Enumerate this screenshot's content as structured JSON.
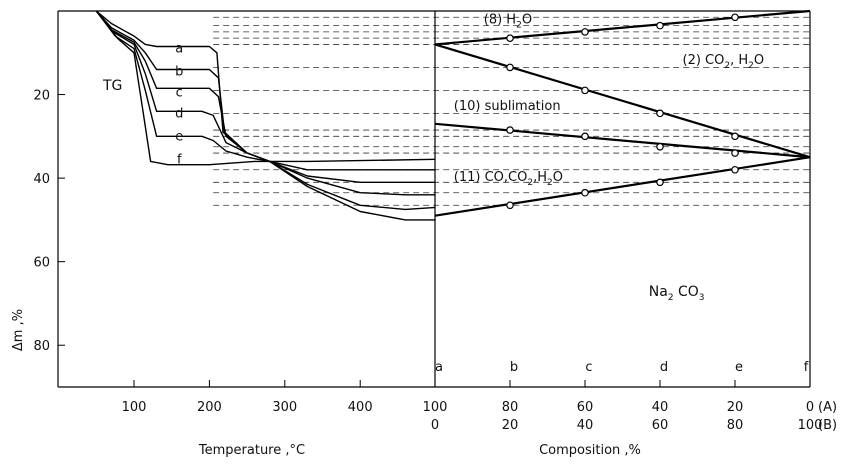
{
  "chart_data": [
    {
      "panel": "left",
      "type": "line",
      "label": "TG",
      "xlabel": "Temperature ,°C",
      "ylabel": "Δm ,%",
      "xlim": [
        0,
        500
      ],
      "ylim": [
        0,
        90
      ],
      "y_inverted": true,
      "x_ticks": [
        100,
        200,
        300,
        400
      ],
      "y_ticks": [
        20,
        40,
        60,
        80
      ],
      "series": [
        {
          "name": "a",
          "points": [
            [
              50,
              0
            ],
            [
              70,
              3
            ],
            [
              100,
              6
            ],
            [
              115,
              8
            ],
            [
              130,
              8.5
            ],
            [
              200,
              8.5
            ],
            [
              210,
              10
            ],
            [
              218,
              29
            ],
            [
              250,
              34
            ],
            [
              280,
              36
            ],
            [
              330,
              42
            ],
            [
              400,
              48
            ],
            [
              460,
              50
            ],
            [
              500,
              50
            ]
          ]
        },
        {
          "name": "b",
          "points": [
            [
              50,
              0
            ],
            [
              70,
              4
            ],
            [
              100,
              7
            ],
            [
              115,
              10
            ],
            [
              130,
              14
            ],
            [
              200,
              14
            ],
            [
              212,
              16
            ],
            [
              220,
              29
            ],
            [
              250,
              34
            ],
            [
              280,
              36
            ],
            [
              330,
              41.5
            ],
            [
              400,
              46.5
            ],
            [
              460,
              47.5
            ],
            [
              500,
              47
            ]
          ]
        },
        {
          "name": "c",
          "points": [
            [
              50,
              0
            ],
            [
              70,
              4.5
            ],
            [
              100,
              7.5
            ],
            [
              115,
              12
            ],
            [
              130,
              18.5
            ],
            [
              200,
              18.5
            ],
            [
              212,
              20.5
            ],
            [
              222,
              30
            ],
            [
              250,
              34
            ],
            [
              280,
              36
            ],
            [
              330,
              40
            ],
            [
              400,
              43.5
            ],
            [
              460,
              44
            ],
            [
              500,
              44
            ]
          ]
        },
        {
          "name": "d",
          "points": [
            [
              50,
              0
            ],
            [
              72,
              5
            ],
            [
              100,
              8
            ],
            [
              115,
              15
            ],
            [
              130,
              24
            ],
            [
              190,
              24
            ],
            [
              205,
              25
            ],
            [
              222,
              31.5
            ],
            [
              250,
              34
            ],
            [
              280,
              36
            ],
            [
              330,
              39.5
            ],
            [
              400,
              41
            ],
            [
              460,
              41
            ],
            [
              500,
              41
            ]
          ]
        },
        {
          "name": "e",
          "points": [
            [
              50,
              0
            ],
            [
              75,
              6
            ],
            [
              100,
              9
            ],
            [
              115,
              19
            ],
            [
              130,
              30
            ],
            [
              190,
              30
            ],
            [
              205,
              31
            ],
            [
              222,
              33.5
            ],
            [
              250,
              35
            ],
            [
              280,
              36
            ],
            [
              330,
              38
            ],
            [
              400,
              38
            ],
            [
              500,
              38
            ]
          ]
        },
        {
          "name": "f",
          "points": [
            [
              50,
              0
            ],
            [
              78,
              6.5
            ],
            [
              100,
              10
            ],
            [
              112,
              24
            ],
            [
              122,
              36
            ],
            [
              145,
              36.8
            ],
            [
              200,
              36.8
            ],
            [
              260,
              36
            ],
            [
              280,
              36
            ],
            [
              330,
              36
            ],
            [
              400,
              35.8
            ],
            [
              500,
              35.5
            ]
          ]
        }
      ],
      "curve_labels": [
        {
          "name": "a",
          "x": 160,
          "y": 9
        },
        {
          "name": "b",
          "x": 160,
          "y": 14.5
        },
        {
          "name": "c",
          "x": 160,
          "y": 19.5
        },
        {
          "name": "d",
          "x": 160,
          "y": 24.5
        },
        {
          "name": "e",
          "x": 160,
          "y": 30
        },
        {
          "name": "f",
          "x": 160,
          "y": 35.5
        }
      ]
    },
    {
      "panel": "right",
      "type": "line",
      "xlabel": "Composition ,%",
      "ylabel": "",
      "xlim": [
        0,
        100
      ],
      "ylim": [
        0,
        90
      ],
      "x_ticks_A": [
        "100",
        "80",
        "60",
        "40",
        "20",
        "0"
      ],
      "x_ticks_B": [
        "0",
        "20",
        "40",
        "60",
        "80",
        "100"
      ],
      "x_axis_tags": [
        "(A)",
        "(B)"
      ],
      "sample_labels": [
        "a",
        "b",
        "c",
        "d",
        "e",
        "f"
      ],
      "series": [
        {
          "name": "(8) H2O boundary",
          "x": [
            0,
            100
          ],
          "y": [
            8,
            0
          ]
        },
        {
          "name": "(2) CO2, H2O boundary",
          "x": [
            0,
            100
          ],
          "y": [
            8,
            35
          ]
        },
        {
          "name": "(10) sublimation boundary",
          "x": [
            0,
            100
          ],
          "y": [
            27,
            35
          ]
        },
        {
          "name": "(11) CO, CO2, H2O boundary",
          "x": [
            0,
            100
          ],
          "y": [
            49,
            35
          ]
        }
      ],
      "measured_points": [
        {
          "x": 20,
          "y": 6.5
        },
        {
          "x": 40,
          "y": 5
        },
        {
          "x": 60,
          "y": 3.5
        },
        {
          "x": 80,
          "y": 1.5
        },
        {
          "x": 20,
          "y": 13.5
        },
        {
          "x": 40,
          "y": 19
        },
        {
          "x": 60,
          "y": 24.5
        },
        {
          "x": 80,
          "y": 30
        },
        {
          "x": 20,
          "y": 28.5
        },
        {
          "x": 40,
          "y": 30
        },
        {
          "x": 60,
          "y": 32.5
        },
        {
          "x": 80,
          "y": 34
        },
        {
          "x": 20,
          "y": 46.5
        },
        {
          "x": 40,
          "y": 43.5
        },
        {
          "x": 60,
          "y": 41
        },
        {
          "x": 80,
          "y": 38
        }
      ],
      "region_labels": [
        {
          "main": "(8) H",
          "sub": "2",
          "tail": "O",
          "x": 13,
          "y": 1.8
        },
        {
          "main": "(2) CO",
          "sub": "2",
          "tail": ", H",
          "sub2": "2",
          "tail2": "O",
          "x": 66,
          "y": 11.5
        },
        {
          "main": "(10) sublimation",
          "x": 5,
          "y": 22.5
        },
        {
          "main": "(11) CO,CO",
          "sub": "2",
          "tail": ",H",
          "sub2": "2",
          "tail2": "O",
          "x": 5,
          "y": 39.5
        },
        {
          "main": "Na",
          "sub": "2",
          "tail": " CO",
          "sub2": "3",
          "x": 57,
          "y": 67
        }
      ]
    }
  ]
}
